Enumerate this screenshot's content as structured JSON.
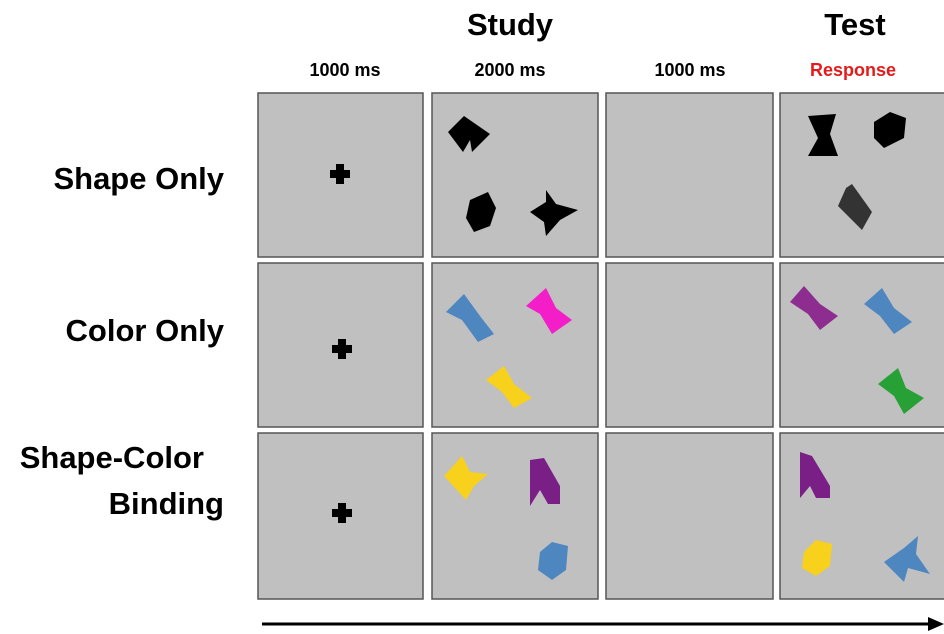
{
  "header": {
    "phases": [
      "Study",
      "Test"
    ],
    "durations": [
      "1000 ms",
      "2000 ms",
      "1000 ms",
      "Response"
    ]
  },
  "rows": [
    {
      "label": [
        "Shape Only"
      ]
    },
    {
      "label": [
        "Color Only"
      ]
    },
    {
      "label": [
        "Shape-Color",
        "Binding"
      ]
    }
  ]
}
